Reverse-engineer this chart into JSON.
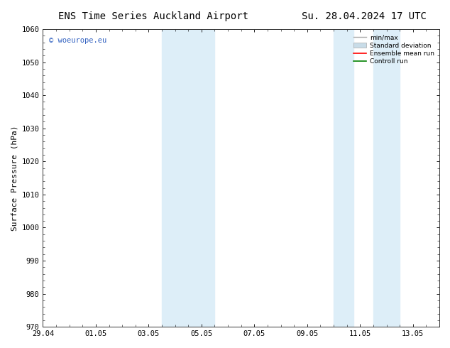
{
  "title_left": "ENS Time Series Auckland Airport",
  "title_right": "Su. 28.04.2024 17 UTC",
  "ylabel": "Surface Pressure (hPa)",
  "ylim": [
    970,
    1060
  ],
  "yticks": [
    970,
    980,
    990,
    1000,
    1010,
    1020,
    1030,
    1040,
    1050,
    1060
  ],
  "xlim_start": 0,
  "xlim_end": 15.0,
  "xtick_labels": [
    "29.04",
    "01.05",
    "03.05",
    "05.05",
    "07.05",
    "09.05",
    "11.05",
    "13.05"
  ],
  "xtick_positions": [
    0,
    2,
    4,
    6,
    8,
    10,
    12,
    14
  ],
  "shaded_regions": [
    {
      "xstart": 4.5,
      "xend": 5.25
    },
    {
      "xstart": 5.25,
      "xend": 6.5
    },
    {
      "xstart": 11.0,
      "xend": 11.75
    },
    {
      "xstart": 12.5,
      "xend": 13.5
    }
  ],
  "shaded_color": "#ddeef8",
  "watermark_text": "© woeurope.eu",
  "watermark_color": "#3060c0",
  "legend_items": [
    {
      "label": "min/max",
      "color": "#aaaaaa",
      "lw": 1.0,
      "style": "solid",
      "type": "line"
    },
    {
      "label": "Standard deviation",
      "color": "#c8dce8",
      "lw": 5,
      "style": "solid",
      "type": "patch"
    },
    {
      "label": "Ensemble mean run",
      "color": "#ff0000",
      "lw": 1.2,
      "style": "solid",
      "type": "line"
    },
    {
      "label": "Controll run",
      "color": "#008000",
      "lw": 1.2,
      "style": "solid",
      "type": "line"
    }
  ],
  "bg_color": "#ffffff",
  "grid_color": "#dddddd",
  "title_fontsize": 10,
  "label_fontsize": 8,
  "tick_fontsize": 7.5
}
